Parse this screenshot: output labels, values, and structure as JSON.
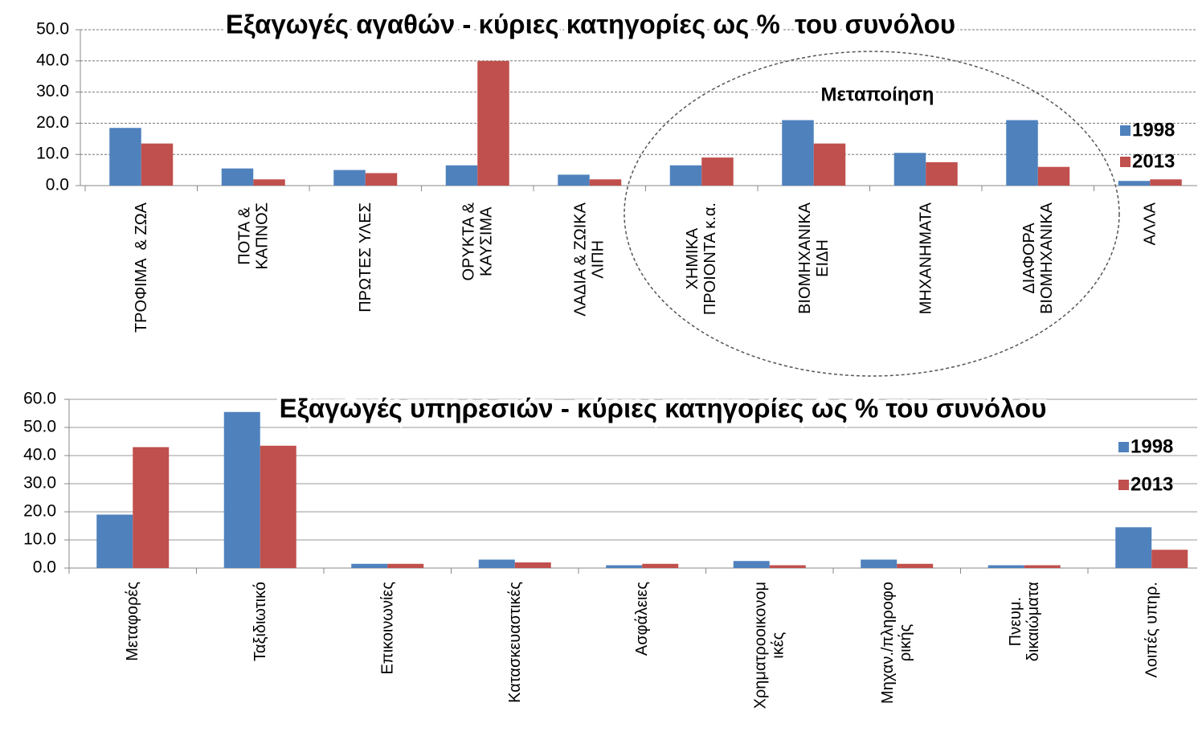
{
  "chart_data": [
    {
      "type": "bar",
      "title": "Εξαγωγές αγαθών - κύριες κατηγορίες ως %  του συνόλου",
      "annotation": "Μεταποίηση",
      "categories": [
        "ΤΡΟΦΙΜΑ  & ΖΩΑ",
        "ΠΟΤΑ &\nΚΑΠΝΟΣ",
        "ΠΡΩΤΕΣ ΥΛΕΣ",
        "ΟΡΥΚΤΑ &\nΚΑΥΣΙΜΑ",
        "ΛΑΔΙΑ & ΖΩΙΚΑ\nΛΙΠΗ",
        "ΧΗΜΙΚΑ\nΠΡΟΙΟΝΤΑ κ.α.",
        "ΒΙΟΜΗΧΑΝΙΚΑ\nΕΙΔΗ",
        "ΜΗΧΑΝΗΜΑΤΑ",
        "ΔΙΑΦΟΡΑ\nΒΙΟΜΗΧΑΝΙΚΑ",
        "ΑΛΛΑ"
      ],
      "series": [
        {
          "name": "1998",
          "color": "#4f81bd",
          "values": [
            18.5,
            5.5,
            5.0,
            6.5,
            3.5,
            6.5,
            21.0,
            10.5,
            21.0,
            1.5
          ]
        },
        {
          "name": "2013",
          "color": "#c0504d",
          "values": [
            13.5,
            2.0,
            4.0,
            40.0,
            2.0,
            9.0,
            13.5,
            7.5,
            6.0,
            2.0
          ]
        }
      ],
      "ylim": [
        0,
        50
      ],
      "yticks": [
        {
          "value": 0,
          "label": "0.0"
        },
        {
          "value": 10,
          "label": "10.0"
        },
        {
          "value": 20,
          "label": "20.0"
        },
        {
          "value": 30,
          "label": "30.0"
        },
        {
          "value": 40,
          "label": "40.0"
        },
        {
          "value": 50,
          "label": "50.0"
        }
      ],
      "grid": true,
      "grid_style": "dashed",
      "legend": "right"
    },
    {
      "type": "bar",
      "title": "Εξαγωγές υπηρεσιών - κύριες κατηγορίες ως % του συνόλου",
      "categories": [
        "Μεταφορές",
        "Ταξιδιωτικό",
        "Επικοινωνίες",
        "Κατασκευαστικές",
        "Ασφάλειες",
        "Χρηματροοικονομ\nικές",
        "Μηχαν./πληροφο\nρικής",
        "Πνευμ.\nδικαιώματα",
        "Λοιπές υπηρ."
      ],
      "series": [
        {
          "name": "1998",
          "color": "#4f81bd",
          "values": [
            19.0,
            55.5,
            1.5,
            3.0,
            1.0,
            2.5,
            3.0,
            1.0,
            14.5
          ]
        },
        {
          "name": "2013",
          "color": "#c0504d",
          "values": [
            43.0,
            43.5,
            1.5,
            2.0,
            1.5,
            1.0,
            1.5,
            1.0,
            6.5
          ]
        }
      ],
      "ylim": [
        0,
        60
      ],
      "yticks": [
        {
          "value": 0,
          "label": "0.0"
        },
        {
          "value": 10,
          "label": "10.0"
        },
        {
          "value": 20,
          "label": "20.0"
        },
        {
          "value": 30,
          "label": "30.0"
        },
        {
          "value": 40,
          "label": "40.0"
        },
        {
          "value": 50,
          "label": "50.0"
        },
        {
          "value": 60,
          "label": "60.0"
        }
      ],
      "grid": true,
      "grid_style": "solid",
      "legend": "right"
    }
  ]
}
